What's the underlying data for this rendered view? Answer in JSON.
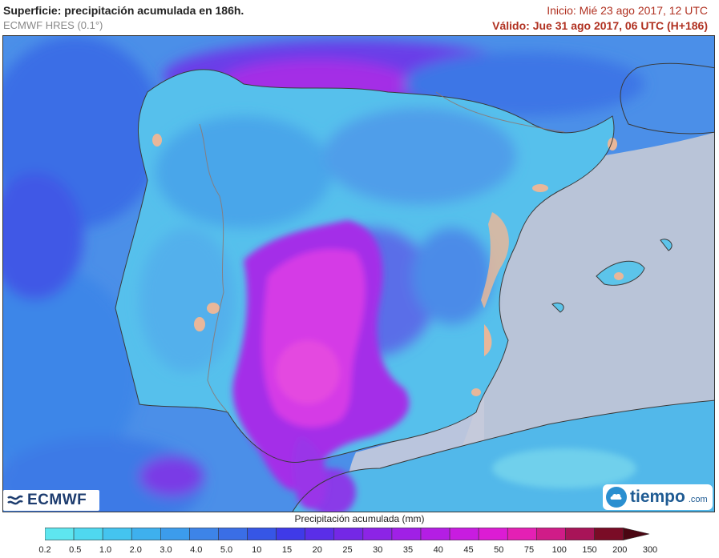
{
  "header": {
    "title": "Superficie: precipitación acumulada en 186h.",
    "model": "ECMWF HRES (0.1°)",
    "init": "Inicio: Mié 23 ago 2017, 12 UTC",
    "valid": "Válido: Jue 31 ago 2017, 06 UTC (H+186)"
  },
  "logos": {
    "ecmwf": "ECMWF",
    "tiempo": "tiempo",
    "tiempo_suffix": ".com"
  },
  "colorbar": {
    "title": "Precipitación acumulada (mm)",
    "labels": [
      "0.2",
      "0.5",
      "1.0",
      "2.0",
      "3.0",
      "4.0",
      "5.0",
      "10",
      "15",
      "20",
      "25",
      "30",
      "35",
      "40",
      "45",
      "50",
      "75",
      "100",
      "150",
      "200",
      "300"
    ],
    "colors": [
      "#5ee6ef",
      "#4fd8ef",
      "#44c4ef",
      "#3eb0ee",
      "#3c9cec",
      "#3d84e8",
      "#3a6ee6",
      "#3656e6",
      "#3f3ae8",
      "#5a2ee8",
      "#7428e6",
      "#8c24e6",
      "#a020e6",
      "#b41ee4",
      "#c81ce0",
      "#dc1cd4",
      "#e420b4",
      "#d01c88",
      "#a81458",
      "#7a0c26"
    ]
  },
  "map_colors": {
    "sea": "#b9c4d8",
    "land_low": "#5fc7ea",
    "land_mid": "#3b8fe3",
    "heavy": "#9a3ae6",
    "max": "#e03ce0",
    "urban": "#e8b79a",
    "border": "#8a7a78"
  }
}
